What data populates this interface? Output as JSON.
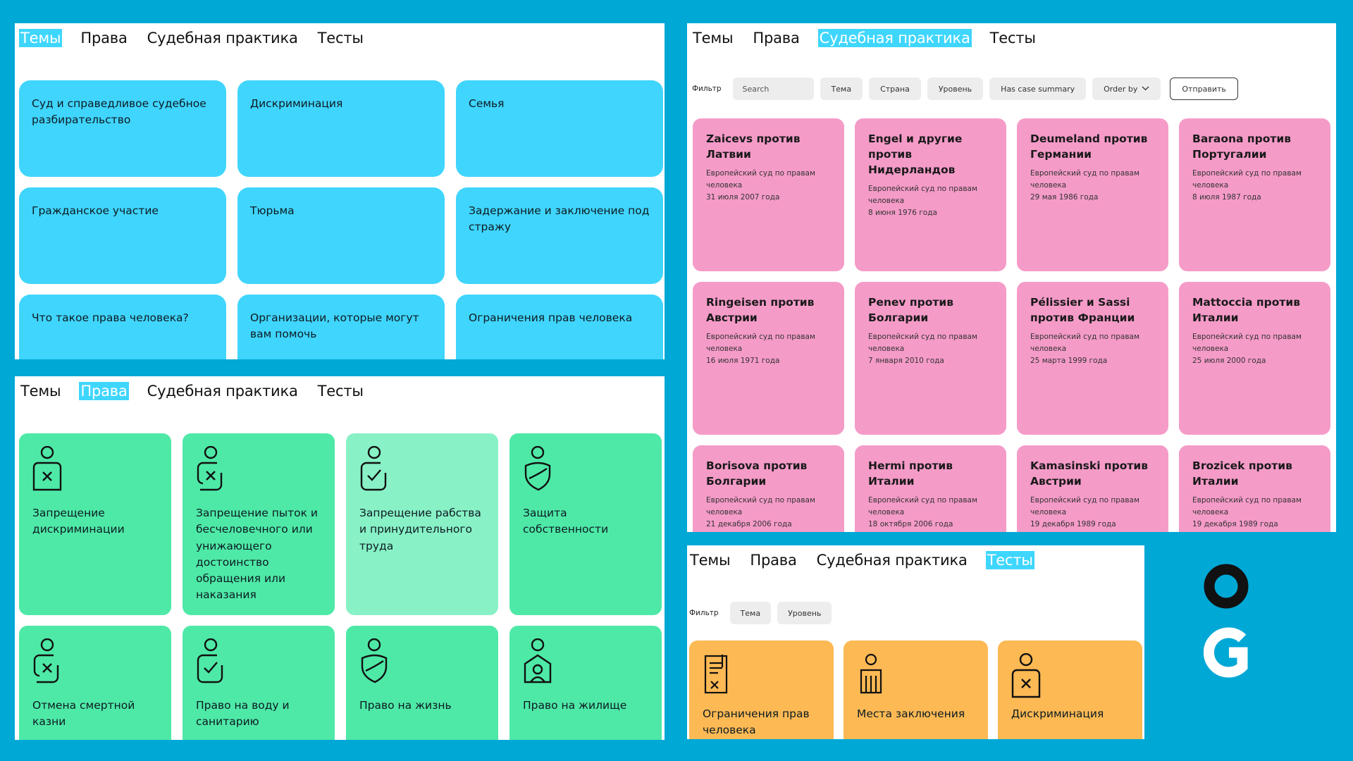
{
  "nav": [
    "Темы",
    "Права",
    "Судебная практика",
    "Тесты"
  ],
  "topics": {
    "cards": [
      "Суд и справедливое судебное разбирательство",
      "Дискриминация",
      "Семья",
      "Гражданское участие",
      "Тюрьма",
      "Задержание и заключение под стражу",
      "Что такое права человека?",
      "Организации, которые могут вам помочь",
      "Ограничения прав человека"
    ]
  },
  "rights": {
    "cards": [
      {
        "label": "Запрещение дискриминации",
        "icon": "person-x-icon"
      },
      {
        "label": "Запрещение пыток и бесчеловечного или унижающего достоинство обращения или наказания",
        "icon": "person-x-side-icon"
      },
      {
        "label": "Запрещение рабства и принудительного труда",
        "icon": "person-check-icon"
      },
      {
        "label": "Защита собственности",
        "icon": "person-shield-icon"
      },
      {
        "label": "Отмена смертной казни",
        "icon": "person-x-side-icon"
      },
      {
        "label": "Право на воду и санитарию",
        "icon": "person-check-icon"
      },
      {
        "label": "Право на жизнь",
        "icon": "person-shield-icon"
      },
      {
        "label": "Право на жилище",
        "icon": "person-house-icon"
      }
    ]
  },
  "cases": {
    "filter_label": "Фильтр",
    "search_placeholder": "Search",
    "chips": [
      "Тема",
      "Страна",
      "Уровень",
      "Has case summary"
    ],
    "order_by": "Order by",
    "submit": "Отправить",
    "court": "Европейский суд по правам человека",
    "cards": [
      {
        "name": "Zaicevs против Латвии",
        "date": "31 июля 2007 года"
      },
      {
        "name": "Engel и другие против Нидерландов",
        "date": "8 июня 1976 года"
      },
      {
        "name": "Deumeland против Германии",
        "date": "29 мая 1986 года"
      },
      {
        "name": "Baraona против Португалии",
        "date": "8 июля 1987 года"
      },
      {
        "name": "Ringeisen против Австрии",
        "date": "16 июля 1971 года"
      },
      {
        "name": "Penev против Болгарии",
        "date": "7 января 2010 года"
      },
      {
        "name": "Pélissier и Sassi против Франции",
        "date": "25 марта 1999 года"
      },
      {
        "name": "Mattoccia против Италии",
        "date": "25 июля 2000 года"
      },
      {
        "name": "Borisova против Болгарии",
        "date": "21 декабря 2006 года"
      },
      {
        "name": "Hermi против Италии",
        "date": "18 октября 2006 года"
      },
      {
        "name": "Kamasinski против Австрии",
        "date": "19 декабря 1989 года"
      },
      {
        "name": "Brozicek против Италии",
        "date": "19 декабря 1989 года"
      }
    ]
  },
  "tests": {
    "filter_label": "Фильтр",
    "chips": [
      "Тема",
      "Уровень"
    ],
    "cards": [
      {
        "label": "Ограничения прав человека",
        "icon": "document-x-icon"
      },
      {
        "label": "Места заключения",
        "icon": "prisoner-icon"
      },
      {
        "label": "Дискриминация",
        "icon": "person-x-icon"
      }
    ]
  }
}
